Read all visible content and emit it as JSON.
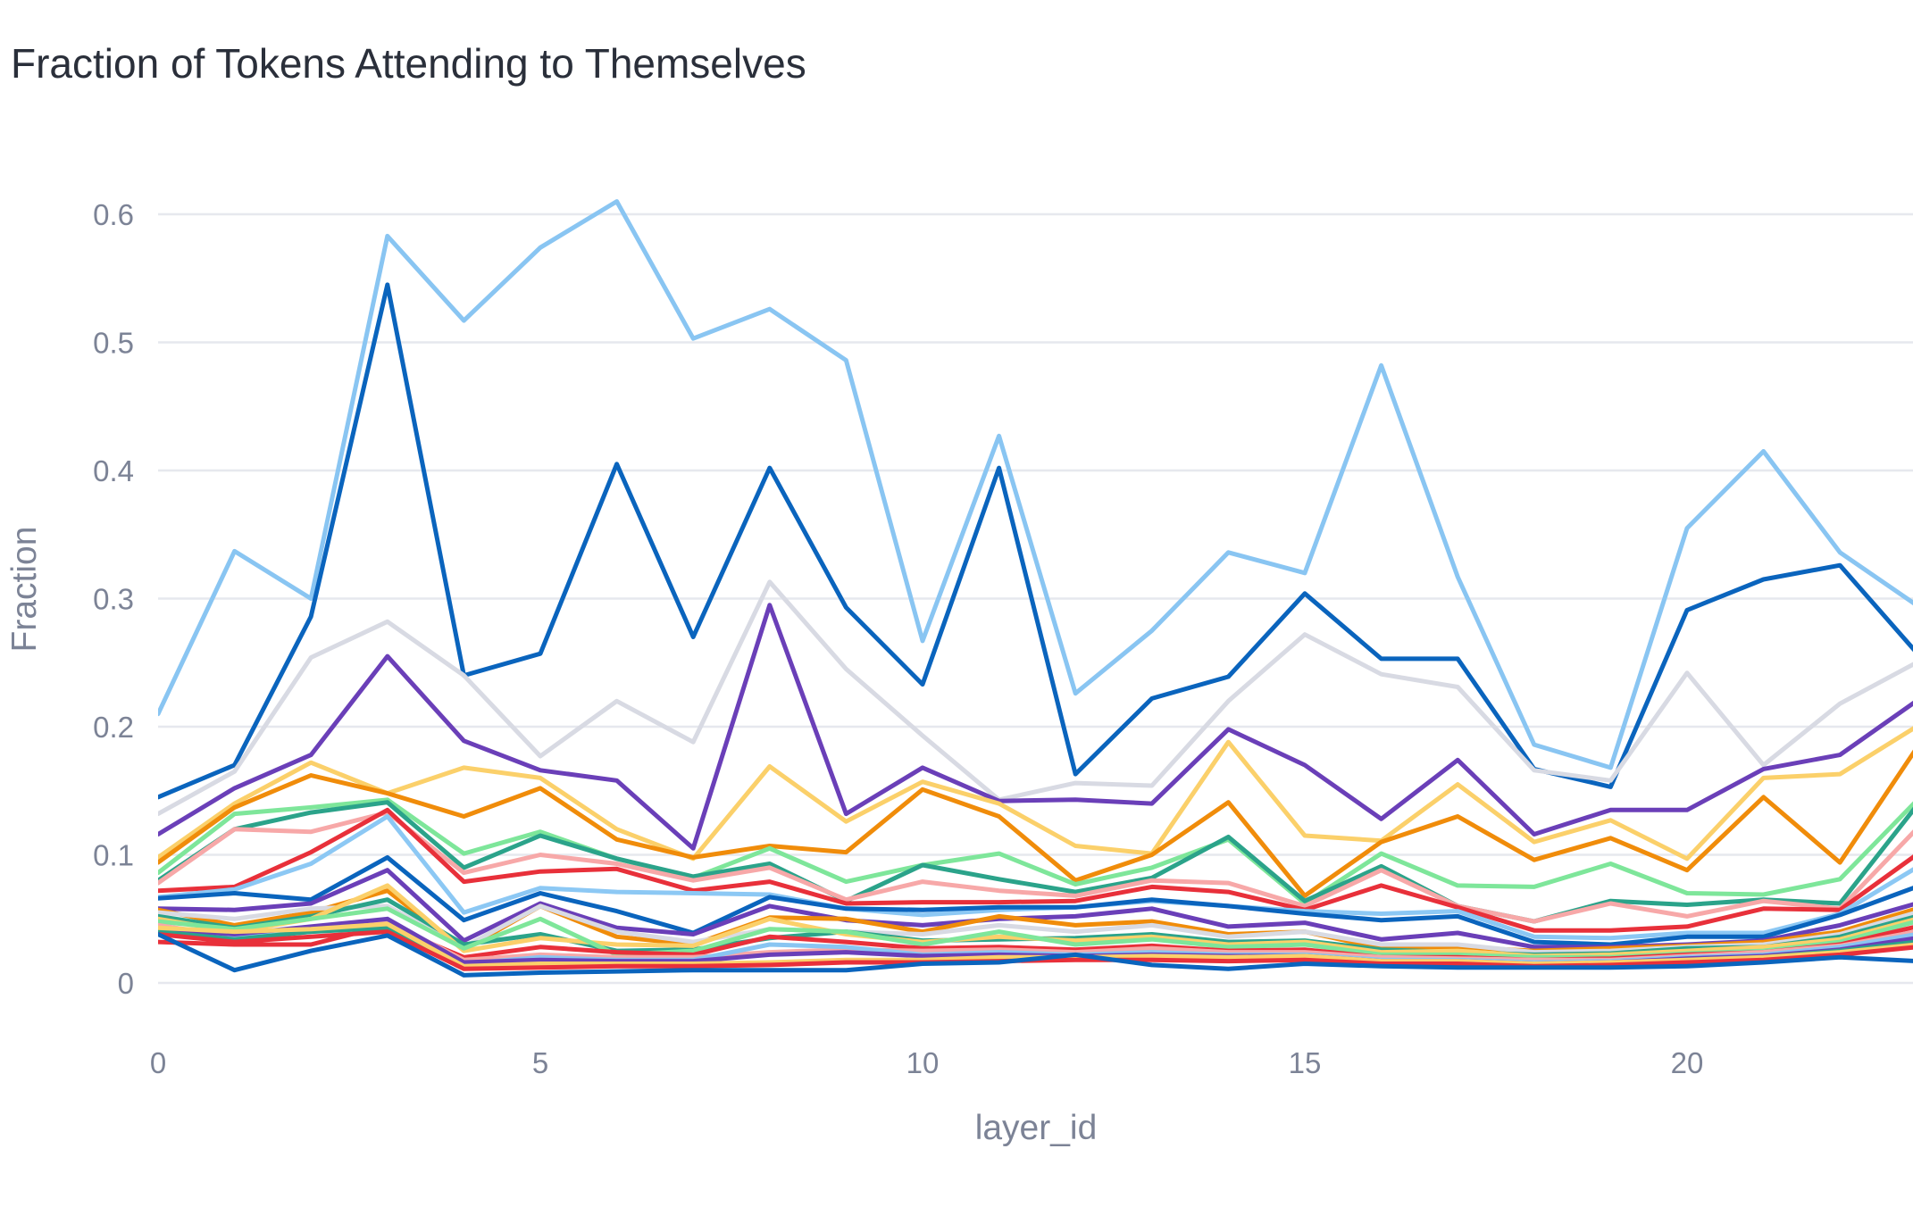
{
  "chart_data": {
    "type": "line",
    "title": "Fraction of Tokens Attending to Themselves",
    "xlabel": "layer_id",
    "ylabel": "Fraction",
    "x_ticks": [
      "0",
      "5",
      "10",
      "15",
      "20"
    ],
    "y_ticks": [
      "0",
      "0.1",
      "0.2",
      "0.3",
      "0.4",
      "0.5",
      "0.6"
    ],
    "xlim": [
      0,
      23.5
    ],
    "ylim": [
      -0.01,
      0.63
    ],
    "grid": true,
    "legend": "none",
    "x": [
      0,
      1,
      2,
      3,
      4,
      5,
      6,
      7,
      8,
      9,
      10,
      11,
      12,
      13,
      14,
      15,
      16,
      17,
      18,
      19,
      20,
      21,
      22,
      23
    ],
    "series": [
      {
        "color": "#89c5f2",
        "values": [
          0.21,
          0.337,
          0.3,
          0.583,
          0.517,
          0.574,
          0.61,
          0.503,
          0.526,
          0.486,
          0.267,
          0.427,
          0.226,
          0.275,
          0.336,
          0.32,
          0.482,
          0.317,
          0.186,
          0.168,
          0.355,
          0.415,
          0.336,
          0.295
        ]
      },
      {
        "color": "#0a64bd",
        "values": [
          0.145,
          0.17,
          0.286,
          0.545,
          0.24,
          0.257,
          0.405,
          0.27,
          0.402,
          0.293,
          0.233,
          0.402,
          0.163,
          0.222,
          0.239,
          0.304,
          0.253,
          0.253,
          0.167,
          0.153,
          0.291,
          0.315,
          0.326,
          0.258
        ]
      },
      {
        "color": "#d8dae3",
        "values": [
          0.132,
          0.165,
          0.254,
          0.282,
          0.24,
          0.177,
          0.22,
          0.188,
          0.313,
          0.245,
          0.193,
          0.143,
          0.156,
          0.154,
          0.22,
          0.272,
          0.241,
          0.231,
          0.166,
          0.158,
          0.242,
          0.17,
          0.218,
          0.25
        ]
      },
      {
        "color": "#6a3fb8",
        "values": [
          0.116,
          0.152,
          0.178,
          0.255,
          0.189,
          0.166,
          0.158,
          0.105,
          0.295,
          0.132,
          0.168,
          0.142,
          0.143,
          0.14,
          0.198,
          0.17,
          0.128,
          0.174,
          0.116,
          0.135,
          0.135,
          0.167,
          0.178,
          0.22
        ]
      },
      {
        "color": "#fbd06a",
        "values": [
          0.098,
          0.14,
          0.172,
          0.148,
          0.168,
          0.16,
          0.12,
          0.097,
          0.169,
          0.126,
          0.157,
          0.14,
          0.107,
          0.101,
          0.188,
          0.115,
          0.111,
          0.155,
          0.11,
          0.127,
          0.097,
          0.16,
          0.163,
          0.2
        ]
      },
      {
        "color": "#f08c0a",
        "values": [
          0.094,
          0.137,
          0.162,
          0.148,
          0.13,
          0.152,
          0.112,
          0.098,
          0.107,
          0.102,
          0.151,
          0.13,
          0.08,
          0.1,
          0.141,
          0.068,
          0.11,
          0.13,
          0.096,
          0.113,
          0.088,
          0.145,
          0.094,
          0.183
        ]
      },
      {
        "color": "#7ee69a",
        "values": [
          0.086,
          0.132,
          0.137,
          0.143,
          0.101,
          0.118,
          0.097,
          0.082,
          0.105,
          0.079,
          0.092,
          0.101,
          0.077,
          0.09,
          0.112,
          0.062,
          0.101,
          0.076,
          0.075,
          0.093,
          0.07,
          0.069,
          0.081,
          0.142
        ]
      },
      {
        "color": "#2ba38a",
        "values": [
          0.08,
          0.12,
          0.133,
          0.141,
          0.09,
          0.115,
          0.097,
          0.083,
          0.093,
          0.064,
          0.092,
          0.081,
          0.071,
          0.082,
          0.114,
          0.064,
          0.091,
          0.06,
          0.048,
          0.064,
          0.061,
          0.065,
          0.062,
          0.138
        ]
      },
      {
        "color": "#f7a8a8",
        "values": [
          0.078,
          0.12,
          0.118,
          0.133,
          0.086,
          0.1,
          0.093,
          0.08,
          0.09,
          0.065,
          0.079,
          0.072,
          0.068,
          0.08,
          0.078,
          0.06,
          0.088,
          0.06,
          0.048,
          0.062,
          0.052,
          0.064,
          0.058,
          0.12
        ]
      },
      {
        "color": "#e8303a",
        "values": [
          0.072,
          0.075,
          0.102,
          0.135,
          0.079,
          0.087,
          0.089,
          0.072,
          0.079,
          0.062,
          0.063,
          0.063,
          0.064,
          0.075,
          0.071,
          0.057,
          0.076,
          0.059,
          0.041,
          0.041,
          0.044,
          0.058,
          0.057,
          0.1
        ]
      },
      {
        "color": "#8cc8f4",
        "values": [
          0.067,
          0.073,
          0.093,
          0.13,
          0.055,
          0.074,
          0.071,
          0.07,
          0.069,
          0.058,
          0.053,
          0.057,
          0.059,
          0.064,
          0.06,
          0.056,
          0.054,
          0.056,
          0.036,
          0.035,
          0.039,
          0.039,
          0.054,
          0.09
        ]
      },
      {
        "color": "#0a64bd",
        "values": [
          0.066,
          0.07,
          0.065,
          0.098,
          0.049,
          0.07,
          0.056,
          0.039,
          0.067,
          0.058,
          0.057,
          0.059,
          0.059,
          0.065,
          0.06,
          0.054,
          0.049,
          0.052,
          0.032,
          0.03,
          0.036,
          0.036,
          0.053,
          0.075
        ]
      },
      {
        "color": "#6a3fb8",
        "values": [
          0.058,
          0.057,
          0.062,
          0.088,
          0.033,
          0.062,
          0.043,
          0.038,
          0.06,
          0.049,
          0.045,
          0.05,
          0.052,
          0.058,
          0.044,
          0.047,
          0.034,
          0.039,
          0.028,
          0.028,
          0.03,
          0.033,
          0.045,
          0.062
        ]
      },
      {
        "color": "#f08c0a",
        "values": [
          0.057,
          0.045,
          0.055,
          0.072,
          0.026,
          0.06,
          0.036,
          0.03,
          0.051,
          0.05,
          0.04,
          0.052,
          0.045,
          0.048,
          0.038,
          0.04,
          0.027,
          0.028,
          0.025,
          0.027,
          0.029,
          0.032,
          0.04,
          0.058
        ]
      },
      {
        "color": "#d8dae3",
        "values": [
          0.055,
          0.05,
          0.058,
          0.06,
          0.028,
          0.06,
          0.04,
          0.032,
          0.042,
          0.04,
          0.038,
          0.045,
          0.04,
          0.045,
          0.036,
          0.04,
          0.03,
          0.03,
          0.024,
          0.025,
          0.028,
          0.03,
          0.038,
          0.055
        ]
      },
      {
        "color": "#2ba38a",
        "values": [
          0.052,
          0.043,
          0.052,
          0.065,
          0.03,
          0.038,
          0.025,
          0.026,
          0.035,
          0.04,
          0.033,
          0.034,
          0.035,
          0.038,
          0.032,
          0.033,
          0.026,
          0.024,
          0.022,
          0.023,
          0.027,
          0.028,
          0.036,
          0.052
        ]
      },
      {
        "color": "#fbd06a",
        "values": [
          0.05,
          0.04,
          0.05,
          0.076,
          0.025,
          0.035,
          0.03,
          0.029,
          0.05,
          0.038,
          0.032,
          0.036,
          0.033,
          0.036,
          0.03,
          0.032,
          0.024,
          0.025,
          0.021,
          0.022,
          0.025,
          0.028,
          0.034,
          0.05
        ]
      },
      {
        "color": "#7ee69a",
        "values": [
          0.048,
          0.042,
          0.05,
          0.058,
          0.027,
          0.05,
          0.022,
          0.025,
          0.042,
          0.04,
          0.03,
          0.04,
          0.03,
          0.034,
          0.028,
          0.03,
          0.022,
          0.022,
          0.02,
          0.02,
          0.023,
          0.025,
          0.032,
          0.048
        ]
      },
      {
        "color": "#e8303a",
        "values": [
          0.032,
          0.03,
          0.03,
          0.045,
          0.02,
          0.028,
          0.024,
          0.022,
          0.036,
          0.032,
          0.027,
          0.028,
          0.026,
          0.029,
          0.025,
          0.026,
          0.02,
          0.02,
          0.018,
          0.019,
          0.022,
          0.024,
          0.03,
          0.044
        ]
      },
      {
        "color": "#f7a8a8",
        "values": [
          0.045,
          0.036,
          0.043,
          0.048,
          0.018,
          0.022,
          0.02,
          0.02,
          0.024,
          0.026,
          0.025,
          0.026,
          0.024,
          0.027,
          0.024,
          0.024,
          0.02,
          0.019,
          0.018,
          0.018,
          0.021,
          0.024,
          0.029,
          0.04
        ]
      },
      {
        "color": "#89c5f2",
        "values": [
          0.04,
          0.035,
          0.04,
          0.045,
          0.015,
          0.02,
          0.018,
          0.018,
          0.03,
          0.028,
          0.022,
          0.024,
          0.022,
          0.024,
          0.022,
          0.022,
          0.018,
          0.018,
          0.016,
          0.017,
          0.02,
          0.022,
          0.028,
          0.038
        ]
      },
      {
        "color": "#6a3fb8",
        "values": [
          0.042,
          0.038,
          0.044,
          0.05,
          0.016,
          0.018,
          0.017,
          0.017,
          0.022,
          0.024,
          0.021,
          0.022,
          0.021,
          0.022,
          0.021,
          0.021,
          0.017,
          0.017,
          0.015,
          0.016,
          0.019,
          0.021,
          0.026,
          0.035
        ]
      },
      {
        "color": "#2ba38a",
        "values": [
          0.04,
          0.034,
          0.04,
          0.043,
          0.012,
          0.014,
          0.014,
          0.014,
          0.015,
          0.017,
          0.017,
          0.018,
          0.019,
          0.02,
          0.019,
          0.02,
          0.016,
          0.016,
          0.014,
          0.015,
          0.018,
          0.02,
          0.025,
          0.032
        ]
      },
      {
        "color": "#fbd06a",
        "values": [
          0.043,
          0.04,
          0.042,
          0.046,
          0.013,
          0.015,
          0.015,
          0.015,
          0.016,
          0.018,
          0.018,
          0.02,
          0.02,
          0.021,
          0.02,
          0.021,
          0.017,
          0.017,
          0.015,
          0.016,
          0.018,
          0.02,
          0.024,
          0.03
        ]
      },
      {
        "color": "#e8303a",
        "values": [
          0.038,
          0.032,
          0.036,
          0.04,
          0.011,
          0.012,
          0.013,
          0.013,
          0.014,
          0.016,
          0.016,
          0.017,
          0.018,
          0.018,
          0.017,
          0.018,
          0.015,
          0.015,
          0.013,
          0.014,
          0.016,
          0.018,
          0.022,
          0.028
        ]
      },
      {
        "color": "#0a64bd",
        "values": [
          0.038,
          0.01,
          0.025,
          0.037,
          0.006,
          0.008,
          0.009,
          0.01,
          0.01,
          0.01,
          0.015,
          0.016,
          0.022,
          0.014,
          0.011,
          0.015,
          0.013,
          0.012,
          0.012,
          0.012,
          0.013,
          0.016,
          0.02,
          0.017
        ]
      }
    ]
  }
}
